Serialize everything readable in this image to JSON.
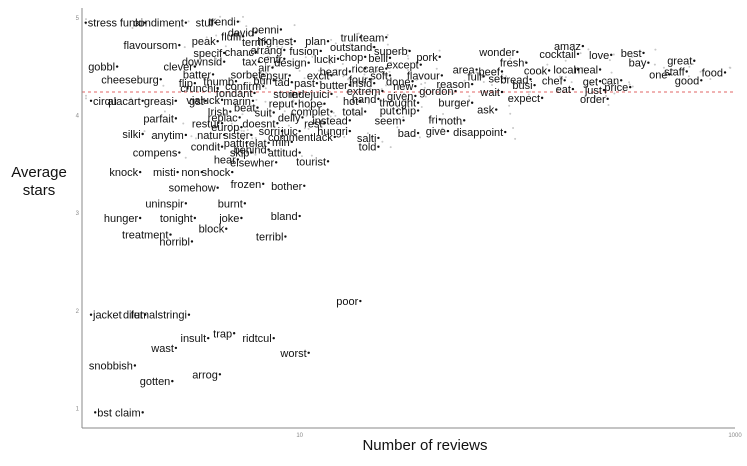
{
  "chart_data": {
    "type": "scatter",
    "title": "",
    "xlabel": "Number of reviews",
    "ylabel": "Average stars",
    "xscale": "log",
    "xlim": [
      1,
      1000
    ],
    "ylim": [
      0.8,
      5.1
    ],
    "xticks": [
      10,
      1000
    ],
    "yticks": [
      1,
      2,
      3,
      4,
      5
    ],
    "reference_line": {
      "y": 4.24,
      "color": "#e06666",
      "style": "dashed"
    },
    "grid": false,
    "legend": "none",
    "points": [
      {
        "label": "stress",
        "x": 1.04,
        "y": 4.95
      },
      {
        "label": "funki",
        "x": 1.95,
        "y": 4.95
      },
      {
        "label": "condiment",
        "x": 3.0,
        "y": 4.95
      },
      {
        "label": "stuf",
        "x": 4.1,
        "y": 4.95
      },
      {
        "label": "trendi",
        "x": 5.2,
        "y": 4.96
      },
      {
        "label": "david",
        "x": 6.3,
        "y": 4.85
      },
      {
        "label": "penni",
        "x": 8.2,
        "y": 4.88
      },
      {
        "label": "fluffi",
        "x": 5.5,
        "y": 4.81
      },
      {
        "label": "truli",
        "x": 19.0,
        "y": 4.8
      },
      {
        "label": "team",
        "x": 25.0,
        "y": 4.8
      },
      {
        "label": "highest",
        "x": 9.5,
        "y": 4.76
      },
      {
        "label": "terrif",
        "x": 7.0,
        "y": 4.75
      },
      {
        "label": "plan",
        "x": 13.5,
        "y": 4.76
      },
      {
        "label": "peak",
        "x": 4.2,
        "y": 4.76
      },
      {
        "label": "flavoursom",
        "x": 2.8,
        "y": 4.72
      },
      {
        "label": "outstand",
        "x": 22.0,
        "y": 4.7
      },
      {
        "label": "superb",
        "x": 32.0,
        "y": 4.66
      },
      {
        "label": "arrang",
        "x": 8.5,
        "y": 4.67
      },
      {
        "label": "fusion",
        "x": 12.5,
        "y": 4.66
      },
      {
        "label": "chanc",
        "x": 6.3,
        "y": 4.65
      },
      {
        "label": "specif",
        "x": 4.5,
        "y": 4.64
      },
      {
        "label": "amaz",
        "x": 200.0,
        "y": 4.71
      },
      {
        "label": "wonder",
        "x": 100.0,
        "y": 4.65
      },
      {
        "label": "cocktail",
        "x": 190.0,
        "y": 4.63
      },
      {
        "label": "love",
        "x": 270.0,
        "y": 4.62
      },
      {
        "label": "best",
        "x": 380.0,
        "y": 4.64
      },
      {
        "label": "centr",
        "x": 8.5,
        "y": 4.58
      },
      {
        "label": "lucki",
        "x": 15.0,
        "y": 4.58
      },
      {
        "label": "chop",
        "x": 20.0,
        "y": 4.6
      },
      {
        "label": "belli",
        "x": 26.0,
        "y": 4.59
      },
      {
        "label": "pork",
        "x": 44.0,
        "y": 4.6
      },
      {
        "label": "downsid",
        "x": 4.5,
        "y": 4.55
      },
      {
        "label": "tax",
        "x": 6.5,
        "y": 4.55
      },
      {
        "label": "design",
        "x": 11.0,
        "y": 4.54
      },
      {
        "label": "fresh",
        "x": 110.0,
        "y": 4.54
      },
      {
        "label": "great",
        "x": 650.0,
        "y": 4.56
      },
      {
        "label": "bay",
        "x": 400.0,
        "y": 4.54
      },
      {
        "label": "except",
        "x": 36.0,
        "y": 4.52
      },
      {
        "label": "gobbl",
        "x": 1.45,
        "y": 4.5
      },
      {
        "label": "clever",
        "x": 3.3,
        "y": 4.5
      },
      {
        "label": "air",
        "x": 7.5,
        "y": 4.49
      },
      {
        "label": "ric",
        "x": 20.0,
        "y": 4.48
      },
      {
        "label": "care",
        "x": 25.0,
        "y": 4.48
      },
      {
        "label": "area",
        "x": 65.0,
        "y": 4.47
      },
      {
        "label": "beef",
        "x": 85.0,
        "y": 4.45
      },
      {
        "label": "cook",
        "x": 140.0,
        "y": 4.46
      },
      {
        "label": "local",
        "x": 190.0,
        "y": 4.47
      },
      {
        "label": "meal",
        "x": 240.0,
        "y": 4.47
      },
      {
        "label": "heard",
        "x": 17.0,
        "y": 4.45
      },
      {
        "label": "food",
        "x": 900.0,
        "y": 4.44
      },
      {
        "label": "one",
        "x": 500.0,
        "y": 4.42
      },
      {
        "label": "staff",
        "x": 600.0,
        "y": 4.45
      },
      {
        "label": "batter",
        "x": 4.0,
        "y": 4.42
      },
      {
        "label": "sorbet",
        "x": 6.8,
        "y": 4.42
      },
      {
        "label": "ensur",
        "x": 9.0,
        "y": 4.41
      },
      {
        "label": "excit",
        "x": 14.0,
        "y": 4.41
      },
      {
        "label": "soft",
        "x": 26.0,
        "y": 4.41
      },
      {
        "label": "flavour",
        "x": 45.0,
        "y": 4.41
      },
      {
        "label": "full",
        "x": 70.0,
        "y": 4.4
      },
      {
        "label": "set",
        "x": 88.0,
        "y": 4.38
      },
      {
        "label": "bread",
        "x": 115.0,
        "y": 4.37
      },
      {
        "label": "chef",
        "x": 165.0,
        "y": 4.36
      },
      {
        "label": "get",
        "x": 240.0,
        "y": 4.35
      },
      {
        "label": "can",
        "x": 300.0,
        "y": 4.36
      },
      {
        "label": "good",
        "x": 700.0,
        "y": 4.36
      },
      {
        "label": "cheeseburg",
        "x": 2.3,
        "y": 4.37
      },
      {
        "label": "four",
        "x": 21.0,
        "y": 4.37
      },
      {
        "label": "done",
        "x": 33.0,
        "y": 4.35
      },
      {
        "label": "flip",
        "x": 3.3,
        "y": 4.33
      },
      {
        "label": "thumb",
        "x": 5.1,
        "y": 4.35
      },
      {
        "label": "bun",
        "x": 7.6,
        "y": 4.36
      },
      {
        "label": "tad",
        "x": 9.2,
        "y": 4.34
      },
      {
        "label": "past",
        "x": 12.0,
        "y": 4.33
      },
      {
        "label": "insid",
        "x": 22.0,
        "y": 4.33
      },
      {
        "label": "butter",
        "x": 17.0,
        "y": 4.31
      },
      {
        "label": "reason",
        "x": 62.0,
        "y": 4.32
      },
      {
        "label": "busi",
        "x": 120.0,
        "y": 4.31
      },
      {
        "label": "new",
        "x": 34.0,
        "y": 4.3
      },
      {
        "label": "price",
        "x": 330.0,
        "y": 4.29
      },
      {
        "label": "crunchi",
        "x": 4.2,
        "y": 4.28
      },
      {
        "label": "confirm",
        "x": 6.8,
        "y": 4.3
      },
      {
        "label": "eat",
        "x": 180.0,
        "y": 4.27
      },
      {
        "label": "extrem",
        "x": 24.0,
        "y": 4.25
      },
      {
        "label": "gordon",
        "x": 52.0,
        "y": 4.25
      },
      {
        "label": "wait",
        "x": 85.0,
        "y": 4.24
      },
      {
        "label": "just",
        "x": 250.0,
        "y": 4.26
      },
      {
        "label": "fondant",
        "x": 6.2,
        "y": 4.23
      },
      {
        "label": "store",
        "x": 10.0,
        "y": 4.22
      },
      {
        "label": "indejuici",
        "x": 14.0,
        "y": 4.22
      },
      {
        "label": "given",
        "x": 34.0,
        "y": 4.2
      },
      {
        "label": "expect",
        "x": 130.0,
        "y": 4.18
      },
      {
        "label": "order",
        "x": 260.0,
        "y": 4.17
      },
      {
        "label": "cirqu",
        "x": 1.1,
        "y": 4.15
      },
      {
        "label": "alacart",
        "x": 1.9,
        "y": 4.15
      },
      {
        "label": "greasi",
        "x": 2.7,
        "y": 4.15
      },
      {
        "label": "gst",
        "x": 3.7,
        "y": 4.15
      },
      {
        "label": "vialuck",
        "x": 4.4,
        "y": 4.16
      },
      {
        "label": "marin",
        "x": 6.1,
        "y": 4.15
      },
      {
        "label": "hand",
        "x": 23.0,
        "y": 4.17
      },
      {
        "label": "hot",
        "x": 19.0,
        "y": 4.15
      },
      {
        "label": "thought",
        "x": 35.0,
        "y": 4.13
      },
      {
        "label": "burger",
        "x": 62.0,
        "y": 4.13
      },
      {
        "label": "reput",
        "x": 9.6,
        "y": 4.12
      },
      {
        "label": "hope",
        "x": 13.0,
        "y": 4.12
      },
      {
        "label": "beat",
        "x": 6.4,
        "y": 4.08
      },
      {
        "label": "ask",
        "x": 80.0,
        "y": 4.06
      },
      {
        "label": "Irish",
        "x": 4.8,
        "y": 4.04
      },
      {
        "label": "suit",
        "x": 7.6,
        "y": 4.03
      },
      {
        "label": "complet",
        "x": 14.0,
        "y": 4.04
      },
      {
        "label": "total",
        "x": 20.0,
        "y": 4.04
      },
      {
        "label": "put",
        "x": 28.0,
        "y": 4.05
      },
      {
        "label": "chip",
        "x": 35.0,
        "y": 4.05
      },
      {
        "label": "replac",
        "x": 5.3,
        "y": 3.98
      },
      {
        "label": "delly",
        "x": 10.3,
        "y": 3.98
      },
      {
        "label": "parfait",
        "x": 2.7,
        "y": 3.97
      },
      {
        "label": "instead",
        "x": 17.0,
        "y": 3.95
      },
      {
        "label": "seem",
        "x": 30.0,
        "y": 3.95
      },
      {
        "label": "fri",
        "x": 44.0,
        "y": 3.96
      },
      {
        "label": "noth",
        "x": 57.0,
        "y": 3.95
      },
      {
        "label": "restur",
        "x": 4.4,
        "y": 3.92
      },
      {
        "label": "doesnt",
        "x": 7.9,
        "y": 3.92
      },
      {
        "label": "rest",
        "x": 13.0,
        "y": 3.92
      },
      {
        "label": "europ",
        "x": 5.4,
        "y": 3.88
      },
      {
        "label": "sorri",
        "x": 8.3,
        "y": 3.84
      },
      {
        "label": "juic",
        "x": 10.0,
        "y": 3.84
      },
      {
        "label": "hungri",
        "x": 17.0,
        "y": 3.84
      },
      {
        "label": "give",
        "x": 48.0,
        "y": 3.84
      },
      {
        "label": "disappoint",
        "x": 88.0,
        "y": 3.83
      },
      {
        "label": "bad",
        "x": 35.0,
        "y": 3.82
      },
      {
        "label": "silki",
        "x": 1.9,
        "y": 3.81
      },
      {
        "label": "anytim",
        "x": 3.0,
        "y": 3.8
      },
      {
        "label": "natur",
        "x": 4.5,
        "y": 3.8
      },
      {
        "label": "sister",
        "x": 6.0,
        "y": 3.8
      },
      {
        "label": "commentlack",
        "x": 14.5,
        "y": 3.78
      },
      {
        "label": "salti",
        "x": 23.0,
        "y": 3.77
      },
      {
        "label": "patti",
        "x": 5.7,
        "y": 3.72
      },
      {
        "label": "relat",
        "x": 7.2,
        "y": 3.72
      },
      {
        "label": "min",
        "x": 9.2,
        "y": 3.73
      },
      {
        "label": "condit",
        "x": 4.4,
        "y": 3.68
      },
      {
        "label": "told",
        "x": 23.0,
        "y": 3.68
      },
      {
        "label": "behind",
        "x": 7.2,
        "y": 3.65
      },
      {
        "label": "skip",
        "x": 6.0,
        "y": 3.62
      },
      {
        "label": "compens",
        "x": 2.8,
        "y": 3.62
      },
      {
        "label": "attitud",
        "x": 10.0,
        "y": 3.62
      },
      {
        "label": "hear",
        "x": 5.2,
        "y": 3.55
      },
      {
        "label": "elsewher",
        "x": 7.8,
        "y": 3.52
      },
      {
        "label": "tourist",
        "x": 13.5,
        "y": 3.53
      },
      {
        "label": "knock",
        "x": 1.85,
        "y": 3.42
      },
      {
        "label": "misti",
        "x": 2.75,
        "y": 3.42
      },
      {
        "label": "non",
        "x": 3.55,
        "y": 3.42
      },
      {
        "label": "shock",
        "x": 4.9,
        "y": 3.42
      },
      {
        "label": "frozen",
        "x": 6.8,
        "y": 3.3
      },
      {
        "label": "bother",
        "x": 10.5,
        "y": 3.28
      },
      {
        "label": "somehow",
        "x": 4.2,
        "y": 3.26
      },
      {
        "label": "uninspir",
        "x": 3.0,
        "y": 3.1
      },
      {
        "label": "burnt",
        "x": 5.6,
        "y": 3.1
      },
      {
        "label": "hunger",
        "x": 1.85,
        "y": 2.95
      },
      {
        "label": "tonight",
        "x": 3.3,
        "y": 2.95
      },
      {
        "label": "joke",
        "x": 5.4,
        "y": 2.95
      },
      {
        "label": "bland",
        "x": 10.0,
        "y": 2.97
      },
      {
        "label": "block",
        "x": 4.6,
        "y": 2.84
      },
      {
        "label": "treatment",
        "x": 2.55,
        "y": 2.78
      },
      {
        "label": "terribl",
        "x": 8.6,
        "y": 2.76
      },
      {
        "label": "horribl",
        "x": 3.2,
        "y": 2.71
      },
      {
        "label": "poor",
        "x": 19.0,
        "y": 2.1
      },
      {
        "label": "jacket",
        "x": 1.1,
        "y": 1.96
      },
      {
        "label": "dilut",
        "x": 1.95,
        "y": 1.96
      },
      {
        "label": "femalstringi",
        "x": 3.1,
        "y": 1.96
      },
      {
        "label": "trap",
        "x": 5.0,
        "y": 1.77
      },
      {
        "label": "insult",
        "x": 3.8,
        "y": 1.72
      },
      {
        "label": "ridtcul",
        "x": 7.6,
        "y": 1.72
      },
      {
        "label": "wast",
        "x": 2.7,
        "y": 1.62
      },
      {
        "label": "worst",
        "x": 11.0,
        "y": 1.57
      },
      {
        "label": "snobbish",
        "x": 1.75,
        "y": 1.44
      },
      {
        "label": "arrog",
        "x": 4.3,
        "y": 1.35
      },
      {
        "label": "gotten",
        "x": 2.6,
        "y": 1.28
      },
      {
        "label": "bst",
        "x": 1.15,
        "y": 0.96
      },
      {
        "label": "claim",
        "x": 1.9,
        "y": 0.96
      }
    ],
    "colors": {
      "text": "#111111",
      "point": "#111111",
      "background_point": "#c8c8c8",
      "axis": "#888888",
      "reference": "#e06666"
    }
  }
}
